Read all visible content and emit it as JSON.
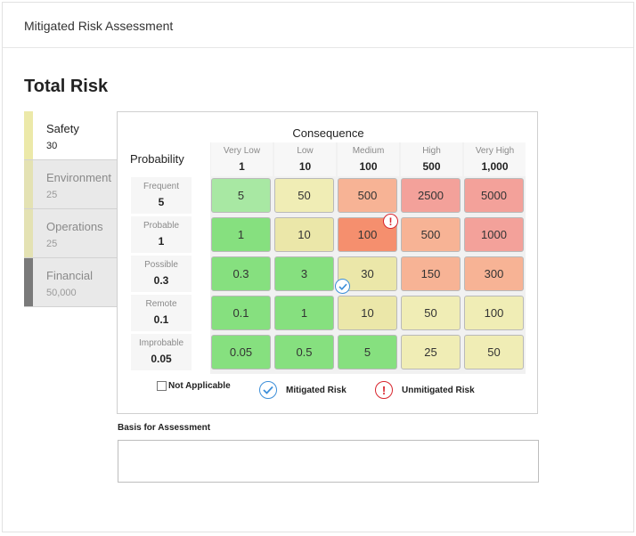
{
  "header": {
    "title": "Mitigated Risk Assessment"
  },
  "section": {
    "title": "Total Risk"
  },
  "categories": [
    {
      "name": "Safety",
      "value": "30",
      "color": "#ece9a9",
      "active": true
    },
    {
      "name": "Environment",
      "value": "25",
      "color": "#e4e2b3",
      "active": false
    },
    {
      "name": "Operations",
      "value": "25",
      "color": "#e4e2b3",
      "active": false
    },
    {
      "name": "Financial",
      "value": "50,000",
      "color": "#7a7a7a",
      "active": false
    }
  ],
  "matrix": {
    "consequence_title": "Consequence",
    "probability_title": "Probability",
    "consequences": [
      {
        "label": "Very Low",
        "value": "1"
      },
      {
        "label": "Low",
        "value": "10"
      },
      {
        "label": "Medium",
        "value": "100"
      },
      {
        "label": "High",
        "value": "500"
      },
      {
        "label": "Very High",
        "value": "1,000"
      }
    ],
    "probabilities": [
      {
        "label": "Frequent",
        "value": "5"
      },
      {
        "label": "Probable",
        "value": "1"
      },
      {
        "label": "Possible",
        "value": "0.3"
      },
      {
        "label": "Remote",
        "value": "0.1"
      },
      {
        "label": "Improbable",
        "value": "0.05"
      }
    ],
    "cells": [
      [
        "5",
        "50",
        "500",
        "2500",
        "5000"
      ],
      [
        "1",
        "10",
        "100",
        "500",
        "1000"
      ],
      [
        "0.3",
        "3",
        "30",
        "150",
        "300"
      ],
      [
        "0.1",
        "1",
        "10",
        "50",
        "100"
      ],
      [
        "0.05",
        "0.5",
        "5",
        "25",
        "50"
      ]
    ],
    "cell_colors": [
      [
        "#a8e8a3",
        "#f0edb5",
        "#f7b395",
        "#f3a19a",
        "#f3a19a"
      ],
      [
        "#86e07f",
        "#ebe7a9",
        "#f58f6e",
        "#f7b395",
        "#f3a19a"
      ],
      [
        "#86e07f",
        "#86e07f",
        "#ebe7a9",
        "#f7b395",
        "#f7b395"
      ],
      [
        "#86e07f",
        "#86e07f",
        "#ebe7a9",
        "#f0edb5",
        "#f0edb5"
      ],
      [
        "#86e07f",
        "#86e07f",
        "#86e07f",
        "#f0edb5",
        "#f0edb5"
      ]
    ],
    "unmitigated_cell": {
      "row": 1,
      "col": 2
    },
    "mitigated_cell": {
      "row": 2,
      "col": 2
    }
  },
  "legend": {
    "not_applicable": "Not Applicable",
    "mitigated": "Mitigated Risk",
    "unmitigated": "Unmitigated Risk"
  },
  "basis": {
    "label": "Basis for Assessment",
    "value": ""
  }
}
